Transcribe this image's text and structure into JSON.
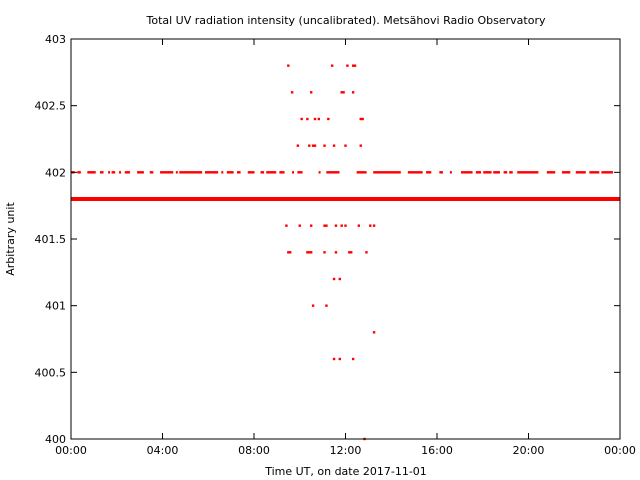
{
  "chart_data": {
    "type": "scatter",
    "title": "Total UV radiation intensity (uncalibrated). Metsähovi Radio Observatory",
    "xlabel": "Time UT, on date 2017-11-01",
    "ylabel": "Arbitrary unit",
    "xlim": [
      "00:00",
      "24:00"
    ],
    "ylim": [
      400,
      403
    ],
    "x_ticks": [
      "00:00",
      "04:00",
      "08:00",
      "12:00",
      "16:00",
      "20:00",
      "00:00"
    ],
    "y_ticks": [
      "400",
      "400.5",
      "401",
      "401.5",
      "402",
      "402.5",
      "403"
    ],
    "grid": false,
    "marker_color": "#ff0000",
    "series": [
      {
        "dense_bands": [
          {
            "y": 401.8,
            "x_from": "00:00",
            "x_to": "24:00",
            "coverage": "continuous"
          },
          {
            "y": 402.0,
            "x_from": "00:00",
            "x_to": "24:00",
            "coverage": "frequent"
          }
        ],
        "points": [
          {
            "x": "09:30",
            "y": 402.8
          },
          {
            "x": "11:25",
            "y": 402.8
          },
          {
            "x": "12:05",
            "y": 402.8
          },
          {
            "x": "12:20",
            "y": 402.8
          },
          {
            "x": "12:25",
            "y": 402.8
          },
          {
            "x": "09:40",
            "y": 402.6
          },
          {
            "x": "10:30",
            "y": 402.6
          },
          {
            "x": "11:50",
            "y": 402.6
          },
          {
            "x": "11:55",
            "y": 402.6
          },
          {
            "x": "12:20",
            "y": 402.6
          },
          {
            "x": "10:05",
            "y": 402.4
          },
          {
            "x": "10:20",
            "y": 402.4
          },
          {
            "x": "10:40",
            "y": 402.4
          },
          {
            "x": "10:50",
            "y": 402.4
          },
          {
            "x": "11:15",
            "y": 402.4
          },
          {
            "x": "12:40",
            "y": 402.4
          },
          {
            "x": "12:45",
            "y": 402.4
          },
          {
            "x": "09:55",
            "y": 402.2
          },
          {
            "x": "10:25",
            "y": 402.2
          },
          {
            "x": "10:35",
            "y": 402.2
          },
          {
            "x": "10:40",
            "y": 402.2
          },
          {
            "x": "11:05",
            "y": 402.2
          },
          {
            "x": "11:30",
            "y": 402.2
          },
          {
            "x": "12:00",
            "y": 402.2
          },
          {
            "x": "12:40",
            "y": 402.2
          },
          {
            "x": "09:25",
            "y": 401.6
          },
          {
            "x": "10:00",
            "y": 401.6
          },
          {
            "x": "10:30",
            "y": 401.6
          },
          {
            "x": "11:05",
            "y": 401.6
          },
          {
            "x": "11:10",
            "y": 401.6
          },
          {
            "x": "11:35",
            "y": 401.6
          },
          {
            "x": "11:50",
            "y": 401.6
          },
          {
            "x": "12:00",
            "y": 401.6
          },
          {
            "x": "12:35",
            "y": 401.6
          },
          {
            "x": "13:05",
            "y": 401.6
          },
          {
            "x": "13:15",
            "y": 401.6
          },
          {
            "x": "09:30",
            "y": 401.4
          },
          {
            "x": "09:35",
            "y": 401.4
          },
          {
            "x": "10:20",
            "y": 401.4
          },
          {
            "x": "10:25",
            "y": 401.4
          },
          {
            "x": "10:30",
            "y": 401.4
          },
          {
            "x": "11:05",
            "y": 401.4
          },
          {
            "x": "11:35",
            "y": 401.4
          },
          {
            "x": "12:10",
            "y": 401.4
          },
          {
            "x": "12:15",
            "y": 401.4
          },
          {
            "x": "12:55",
            "y": 401.4
          },
          {
            "x": "11:30",
            "y": 401.2
          },
          {
            "x": "11:45",
            "y": 401.2
          },
          {
            "x": "10:35",
            "y": 401.0
          },
          {
            "x": "11:10",
            "y": 401.0
          },
          {
            "x": "13:15",
            "y": 400.8
          },
          {
            "x": "11:30",
            "y": 400.6
          },
          {
            "x": "11:45",
            "y": 400.6
          },
          {
            "x": "12:20",
            "y": 400.6
          },
          {
            "x": "12:50",
            "y": 400.0
          }
        ]
      }
    ]
  }
}
